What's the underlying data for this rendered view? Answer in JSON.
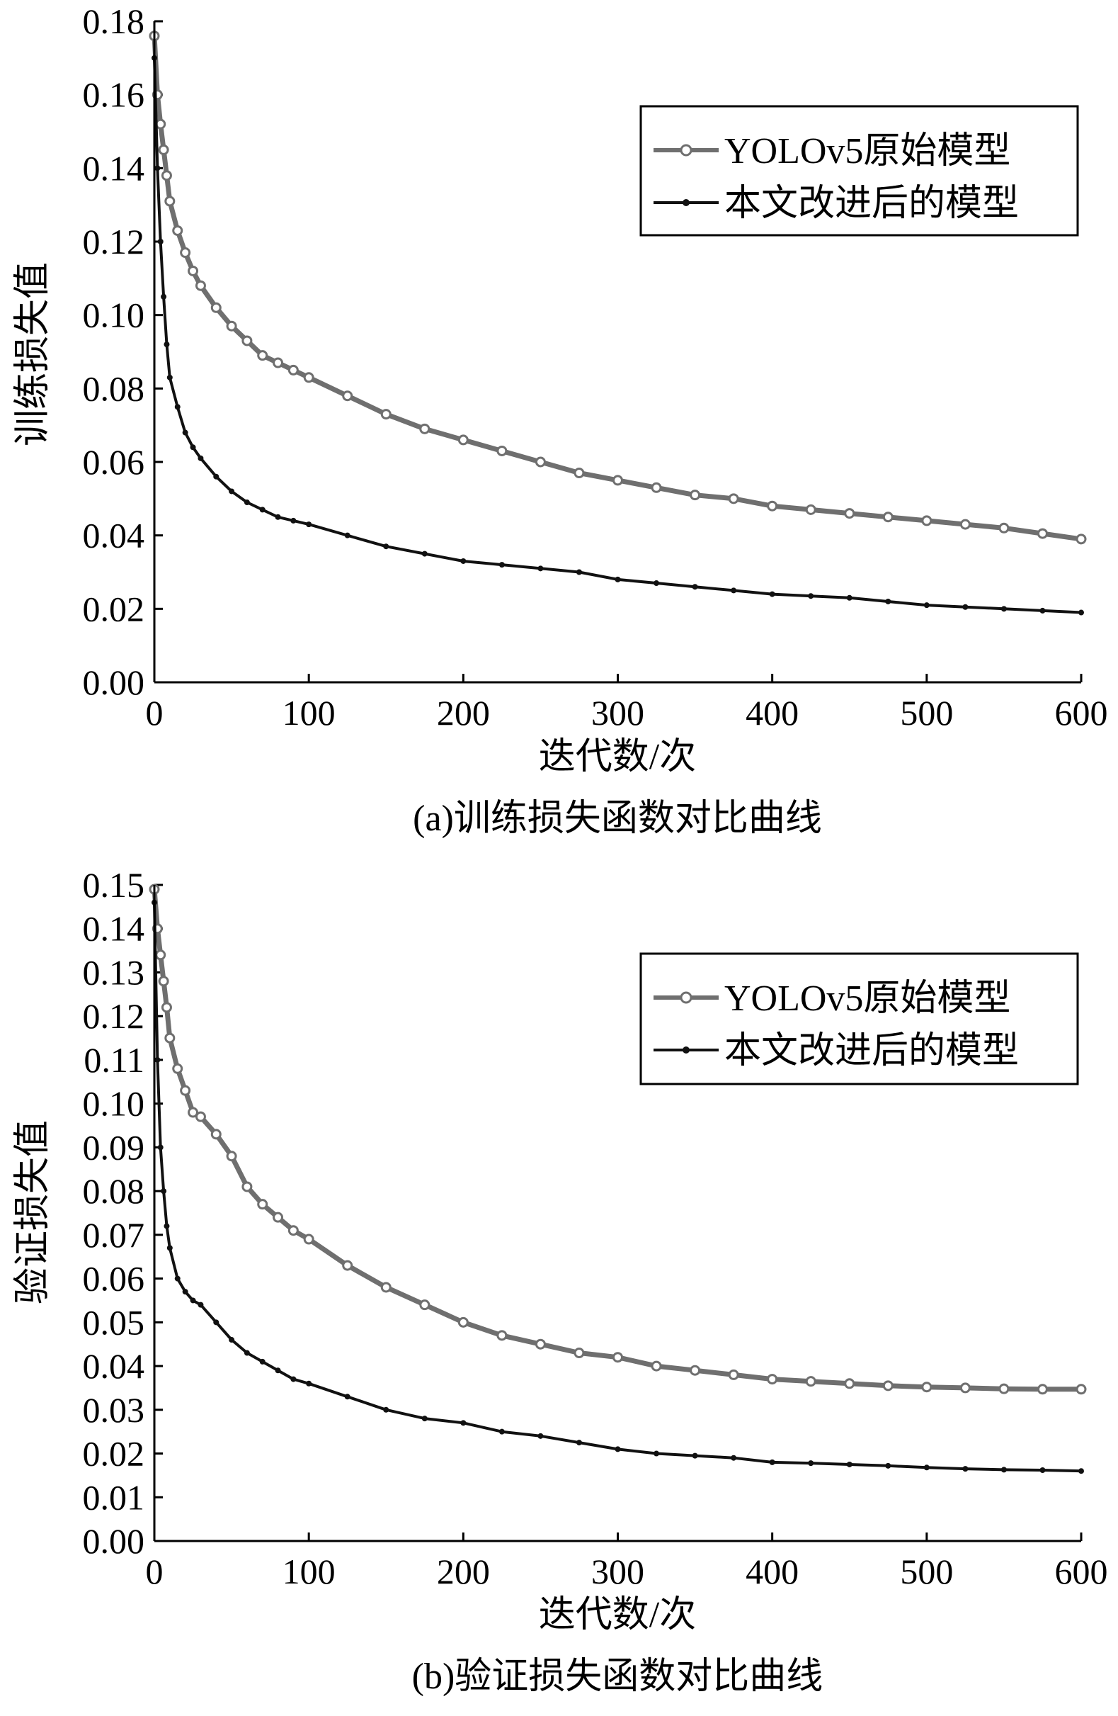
{
  "chart_data": [
    {
      "type": "line",
      "caption": "(a)训练损失函数对比曲线",
      "xlabel": "迭代数/次",
      "ylabel": "训练损失值",
      "xlim": [
        0,
        600
      ],
      "ylim": [
        0,
        0.18
      ],
      "x_ticks": [
        "0",
        "100",
        "200",
        "300",
        "400",
        "500",
        "600"
      ],
      "y_ticks": [
        "0.00",
        "0.02",
        "0.04",
        "0.06",
        "0.08",
        "0.10",
        "0.12",
        "0.14",
        "0.16",
        "0.18"
      ],
      "legend_position": "top-right",
      "x": [
        0,
        2,
        4,
        6,
        8,
        10,
        15,
        20,
        25,
        30,
        40,
        50,
        60,
        70,
        80,
        90,
        100,
        125,
        150,
        175,
        200,
        225,
        250,
        275,
        300,
        325,
        350,
        375,
        400,
        425,
        450,
        475,
        500,
        525,
        550,
        575,
        600
      ],
      "series": [
        {
          "name": "YOLOv5原始模型",
          "color": "#6f6f6f",
          "marker": "open-circle",
          "values": [
            0.176,
            0.16,
            0.152,
            0.145,
            0.138,
            0.131,
            0.123,
            0.117,
            0.112,
            0.108,
            0.102,
            0.097,
            0.093,
            0.089,
            0.087,
            0.085,
            0.083,
            0.078,
            0.073,
            0.069,
            0.066,
            0.063,
            0.06,
            0.057,
            0.055,
            0.053,
            0.051,
            0.05,
            0.048,
            0.047,
            0.046,
            0.045,
            0.044,
            0.043,
            0.042,
            0.0405,
            0.039
          ]
        },
        {
          "name": "本文改进后的模型",
          "color": "#111111",
          "marker": "dot",
          "values": [
            0.17,
            0.14,
            0.12,
            0.105,
            0.092,
            0.083,
            0.075,
            0.068,
            0.064,
            0.061,
            0.056,
            0.052,
            0.049,
            0.047,
            0.045,
            0.044,
            0.043,
            0.04,
            0.037,
            0.035,
            0.033,
            0.032,
            0.031,
            0.03,
            0.028,
            0.027,
            0.026,
            0.025,
            0.024,
            0.0235,
            0.023,
            0.022,
            0.021,
            0.0205,
            0.02,
            0.0195,
            0.019
          ]
        }
      ]
    },
    {
      "type": "line",
      "caption": "(b)验证损失函数对比曲线",
      "xlabel": "迭代数/次",
      "ylabel": "验证损失值",
      "xlim": [
        0,
        600
      ],
      "ylim": [
        0,
        0.15
      ],
      "x_ticks": [
        "0",
        "100",
        "200",
        "300",
        "400",
        "500",
        "600"
      ],
      "y_ticks": [
        "0.00",
        "0.01",
        "0.02",
        "0.03",
        "0.04",
        "0.05",
        "0.06",
        "0.07",
        "0.08",
        "0.09",
        "0.10",
        "0.11",
        "0.12",
        "0.13",
        "0.14",
        "0.15"
      ],
      "legend_position": "top-right",
      "x": [
        0,
        2,
        4,
        6,
        8,
        10,
        15,
        20,
        25,
        30,
        40,
        50,
        60,
        70,
        80,
        90,
        100,
        125,
        150,
        175,
        200,
        225,
        250,
        275,
        300,
        325,
        350,
        375,
        400,
        425,
        450,
        475,
        500,
        525,
        550,
        575,
        600
      ],
      "series": [
        {
          "name": "YOLOv5原始模型",
          "color": "#6f6f6f",
          "marker": "open-circle",
          "values": [
            0.149,
            0.14,
            0.134,
            0.128,
            0.122,
            0.115,
            0.108,
            0.103,
            0.098,
            0.097,
            0.093,
            0.088,
            0.081,
            0.077,
            0.074,
            0.071,
            0.069,
            0.063,
            0.058,
            0.054,
            0.05,
            0.047,
            0.045,
            0.043,
            0.042,
            0.04,
            0.039,
            0.038,
            0.037,
            0.0365,
            0.036,
            0.0355,
            0.0352,
            0.035,
            0.0348,
            0.0347,
            0.0347
          ]
        },
        {
          "name": "本文改进后的模型",
          "color": "#111111",
          "marker": "dot",
          "values": [
            0.146,
            0.11,
            0.09,
            0.08,
            0.072,
            0.067,
            0.06,
            0.057,
            0.055,
            0.054,
            0.05,
            0.046,
            0.043,
            0.041,
            0.039,
            0.037,
            0.036,
            0.033,
            0.03,
            0.028,
            0.027,
            0.025,
            0.024,
            0.0225,
            0.021,
            0.02,
            0.0195,
            0.019,
            0.018,
            0.0178,
            0.0175,
            0.0172,
            0.0168,
            0.0165,
            0.0163,
            0.0162,
            0.016
          ]
        }
      ]
    }
  ]
}
